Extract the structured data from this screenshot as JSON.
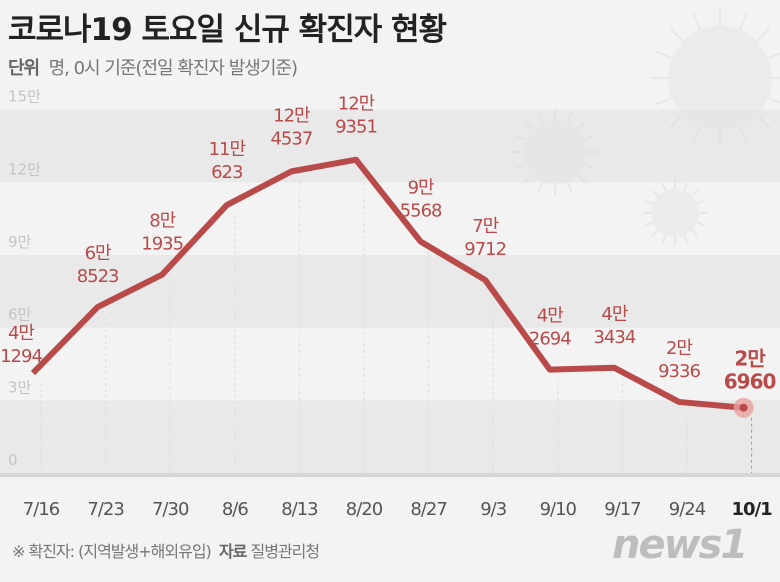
{
  "title": "코로나19 토요일 신규 확진자 현황",
  "unit_label": "단위",
  "unit_text": "명, 0시 기준(전일 확진자 발생기준)",
  "footnote": "※ 확진자: (지역발생+해외유입)",
  "source_label": "자료",
  "source": "질병관리청",
  "logo": "news1",
  "chart_data": {
    "type": "line",
    "title": "코로나19 토요일 신규 확진자 현황",
    "categories": [
      "7/16",
      "7/23",
      "7/30",
      "8/6",
      "8/13",
      "8/20",
      "8/27",
      "9/3",
      "9/10",
      "9/17",
      "9/24",
      "10/1"
    ],
    "values": [
      41294,
      68523,
      81935,
      110623,
      124537,
      129351,
      95568,
      79712,
      42694,
      43434,
      29336,
      26960
    ],
    "labels": [
      [
        "4만",
        "1294"
      ],
      [
        "6만",
        "8523"
      ],
      [
        "8만",
        "1935"
      ],
      [
        "11만",
        "623"
      ],
      [
        "12만",
        "4537"
      ],
      [
        "12만",
        "9351"
      ],
      [
        "9만",
        "5568"
      ],
      [
        "7만",
        "9712"
      ],
      [
        "4만",
        "2694"
      ],
      [
        "4만",
        "3434"
      ],
      [
        "2만",
        "9336"
      ],
      [
        "2만",
        "6960"
      ]
    ],
    "yticks": [
      0,
      30000,
      60000,
      90000,
      120000,
      150000
    ],
    "ytick_labels": [
      "0",
      "3만",
      "6만",
      "9만",
      "12만",
      "15만"
    ],
    "ylim": [
      0,
      150000
    ],
    "color": "#b94a4a",
    "grid": true
  }
}
